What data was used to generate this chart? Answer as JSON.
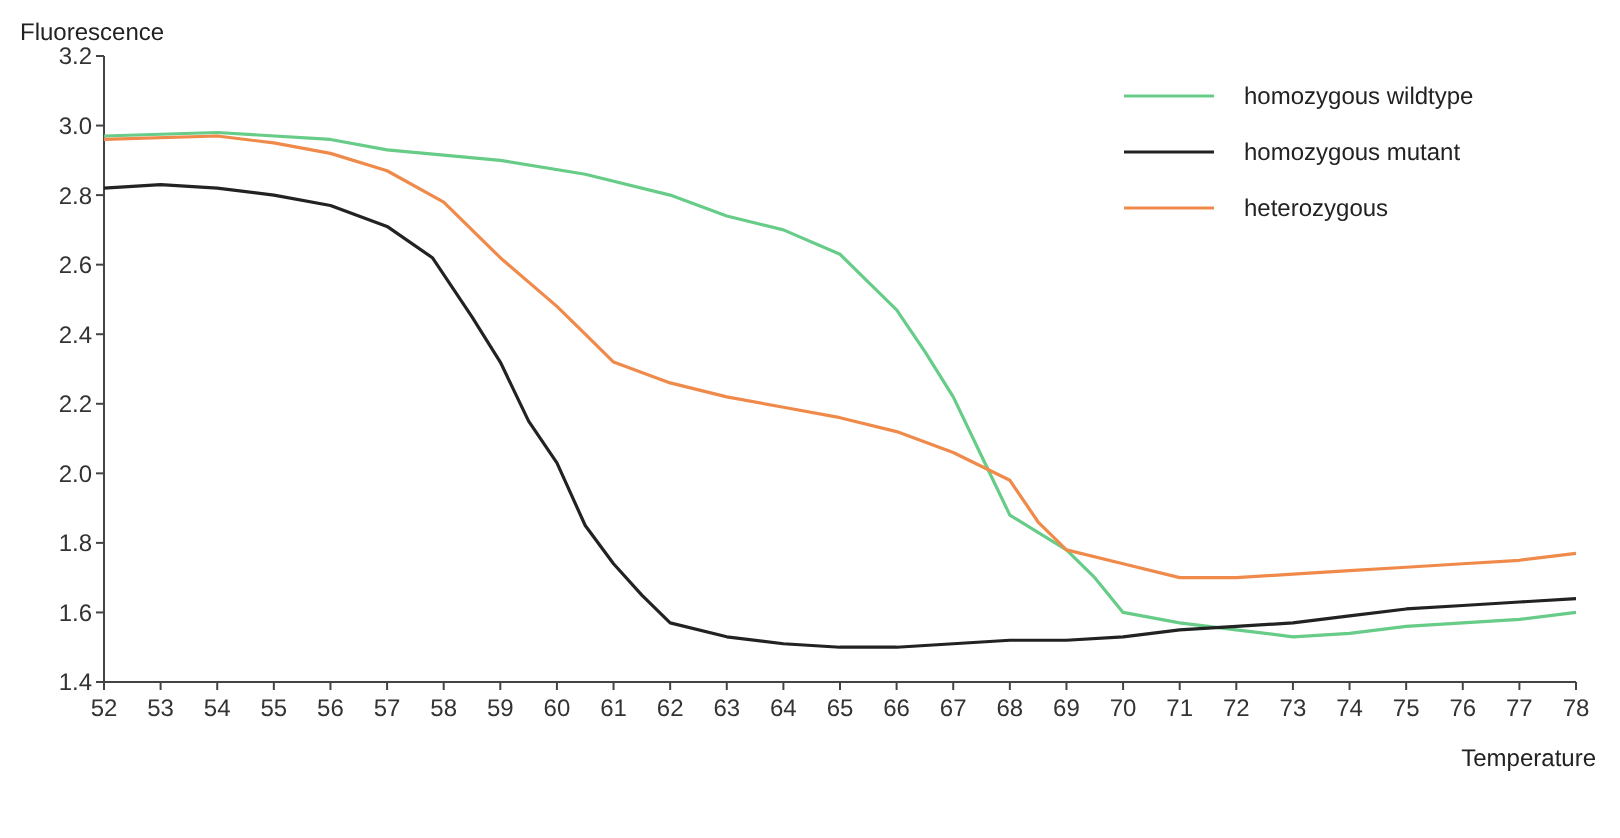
{
  "chart_data": {
    "type": "line",
    "xlabel": "Temperature",
    "ylabel": "Fluorescence",
    "xlim": [
      52,
      78
    ],
    "xticks": [
      52,
      53,
      54,
      55,
      56,
      57,
      58,
      59,
      60,
      61,
      62,
      63,
      64,
      65,
      66,
      67,
      68,
      69,
      70,
      71,
      72,
      73,
      74,
      75,
      76,
      77,
      78
    ],
    "ylim": [
      1.4,
      3.2
    ],
    "yticks": [
      1.4,
      1.6,
      1.8,
      {
        "value": 2,
        "label": "2.0"
      },
      2.2,
      2.4,
      2.6,
      2.8,
      {
        "value": 3,
        "label": "3.0"
      },
      3.2
    ],
    "grid": false,
    "legend": "top right",
    "line_style": "solid",
    "series": [
      {
        "name": "homozygous wildtype",
        "color": "#66cc88",
        "x": [
          52,
          54,
          56,
          57,
          59,
          60.5,
          62,
          63,
          64,
          65,
          65.5,
          66,
          66.5,
          67,
          67.5,
          68,
          69,
          69.5,
          70,
          71,
          72,
          73,
          74,
          75,
          76,
          77,
          78
        ],
        "values": [
          2.97,
          2.98,
          2.96,
          2.93,
          2.9,
          2.86,
          2.8,
          2.74,
          2.7,
          2.63,
          2.55,
          2.47,
          2.35,
          2.22,
          2.05,
          1.88,
          1.78,
          1.7,
          1.6,
          1.57,
          1.55,
          1.53,
          1.54,
          1.56,
          1.57,
          1.58,
          1.6
        ]
      },
      {
        "name": "homozygous mutant",
        "color": "#222222",
        "x": [
          52,
          53,
          54,
          55,
          56,
          57,
          57.8,
          58.5,
          59,
          59.5,
          60,
          60.5,
          61,
          61.5,
          62,
          63,
          64,
          65,
          66,
          67,
          68,
          69,
          70,
          71,
          72,
          73,
          74,
          75,
          76,
          77,
          78
        ],
        "values": [
          2.82,
          2.83,
          2.82,
          2.8,
          2.77,
          2.71,
          2.62,
          2.45,
          2.32,
          2.15,
          2.03,
          1.85,
          1.74,
          1.65,
          1.57,
          1.53,
          1.51,
          1.5,
          1.5,
          1.51,
          1.52,
          1.52,
          1.53,
          1.55,
          1.56,
          1.57,
          1.59,
          1.61,
          1.62,
          1.63,
          1.64
        ]
      },
      {
        "name": "heterozygous",
        "color": "#f08a4b",
        "x": [
          52,
          54,
          55,
          56,
          57,
          58,
          59,
          60,
          60.5,
          61,
          62,
          63,
          64,
          65,
          66,
          67,
          68,
          68.5,
          69,
          70,
          71,
          72,
          73,
          74,
          75,
          76,
          77,
          78
        ],
        "values": [
          2.96,
          2.97,
          2.95,
          2.92,
          2.87,
          2.78,
          2.62,
          2.48,
          2.4,
          2.32,
          2.26,
          2.22,
          2.19,
          2.16,
          2.12,
          2.06,
          1.98,
          1.86,
          1.78,
          1.74,
          1.7,
          1.7,
          1.71,
          1.72,
          1.73,
          1.74,
          1.75,
          1.77
        ]
      }
    ]
  }
}
